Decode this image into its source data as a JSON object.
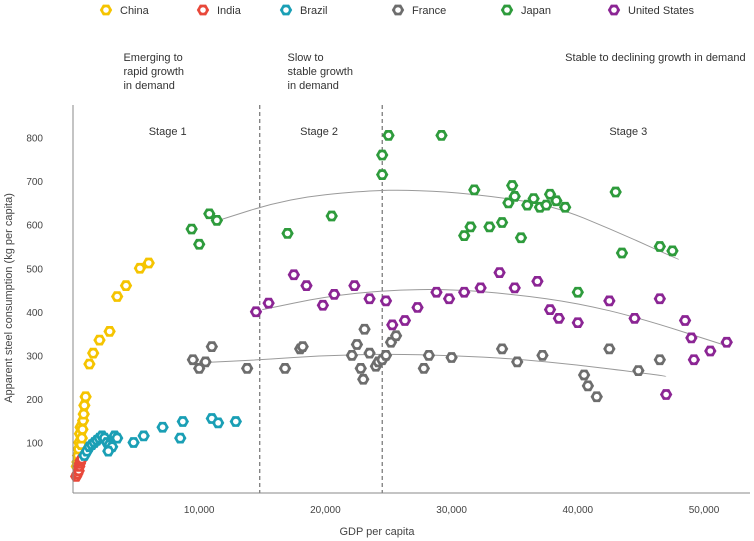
{
  "chart_data": {
    "type": "scatter",
    "title": "",
    "xlabel": "GDP per capita",
    "ylabel": "Apparent steel consumption (kg per capita)",
    "xlim": [
      0,
      55000
    ],
    "ylim": [
      0,
      850
    ],
    "xticks": [
      {
        "value": 10000,
        "label": "10,000"
      },
      {
        "value": 20000,
        "label": "20,000"
      },
      {
        "value": 30000,
        "label": "30,000"
      },
      {
        "value": 40000,
        "label": "40,000"
      },
      {
        "value": 50000,
        "label": "50,000"
      }
    ],
    "yticks": [
      {
        "value": 100,
        "label": "100"
      },
      {
        "value": 200,
        "label": "200"
      },
      {
        "value": 300,
        "label": "300"
      },
      {
        "value": 400,
        "label": "400"
      },
      {
        "value": 500,
        "label": "500"
      },
      {
        "value": 600,
        "label": "600"
      },
      {
        "value": 700,
        "label": "700"
      },
      {
        "value": 800,
        "label": "800"
      }
    ],
    "grid": false,
    "legend_position": "top",
    "stage_dividers": [
      14800,
      24500
    ],
    "stages": [
      {
        "label": "Stage 1",
        "x": 7500,
        "y": 795
      },
      {
        "label": "Stage 2",
        "x": 19500,
        "y": 795
      },
      {
        "label": "Stage 3",
        "x": 44000,
        "y": 795
      }
    ],
    "stage_notes": [
      {
        "lines": [
          "Emerging to",
          "rapid growth",
          "in demand"
        ],
        "x": 4000
      },
      {
        "lines": [
          "Slow to",
          "stable growth",
          "in demand"
        ],
        "x": 17000
      },
      {
        "lines": [
          "Stable to declining growth in demand"
        ],
        "x": 39000
      }
    ],
    "series": [
      {
        "name": "China",
        "color": "#F5C400",
        "points": [
          [
            300,
            45
          ],
          [
            350,
            55
          ],
          [
            400,
            70
          ],
          [
            450,
            85
          ],
          [
            500,
            100
          ],
          [
            550,
            120
          ],
          [
            600,
            135
          ],
          [
            650,
            95
          ],
          [
            700,
            110
          ],
          [
            750,
            130
          ],
          [
            800,
            150
          ],
          [
            850,
            165
          ],
          [
            900,
            185
          ],
          [
            1000,
            205
          ],
          [
            1300,
            280
          ],
          [
            1600,
            305
          ],
          [
            2100,
            335
          ],
          [
            2900,
            355
          ],
          [
            3500,
            435
          ],
          [
            4200,
            460
          ],
          [
            5300,
            500
          ],
          [
            6000,
            512
          ]
        ]
      },
      {
        "name": "India",
        "color": "#E8483A",
        "points": [
          [
            250,
            22
          ],
          [
            350,
            28
          ],
          [
            450,
            35
          ],
          [
            500,
            45
          ],
          [
            550,
            52
          ],
          [
            600,
            58
          ],
          [
            700,
            62
          ]
        ]
      },
      {
        "name": "Brazil",
        "color": "#1A9FB5",
        "points": [
          [
            900,
            70
          ],
          [
            1100,
            80
          ],
          [
            1300,
            90
          ],
          [
            1500,
            95
          ],
          [
            1700,
            100
          ],
          [
            1900,
            105
          ],
          [
            2100,
            110
          ],
          [
            2300,
            115
          ],
          [
            2500,
            110
          ],
          [
            2700,
            100
          ],
          [
            2900,
            95
          ],
          [
            3100,
            90
          ],
          [
            3300,
            115
          ],
          [
            2800,
            80
          ],
          [
            3500,
            110
          ],
          [
            4800,
            100
          ],
          [
            5600,
            115
          ],
          [
            7100,
            135
          ],
          [
            8500,
            110
          ],
          [
            8700,
            148
          ],
          [
            11000,
            155
          ],
          [
            11500,
            145
          ],
          [
            12900,
            148
          ]
        ]
      },
      {
        "name": "France",
        "color": "#6D6D6D",
        "points": [
          [
            9500,
            290
          ],
          [
            10000,
            270
          ],
          [
            10500,
            285
          ],
          [
            11000,
            320
          ],
          [
            13800,
            270
          ],
          [
            16800,
            270
          ],
          [
            18000,
            315
          ],
          [
            18200,
            320
          ],
          [
            22100,
            300
          ],
          [
            22500,
            325
          ],
          [
            22800,
            270
          ],
          [
            23000,
            245
          ],
          [
            23100,
            360
          ],
          [
            23500,
            305
          ],
          [
            24000,
            275
          ],
          [
            24200,
            285
          ],
          [
            24500,
            290
          ],
          [
            24800,
            300
          ],
          [
            25200,
            330
          ],
          [
            25600,
            345
          ],
          [
            27800,
            270
          ],
          [
            28200,
            300
          ],
          [
            30000,
            295
          ],
          [
            34000,
            315
          ],
          [
            35200,
            285
          ],
          [
            37200,
            300
          ],
          [
            40500,
            255
          ],
          [
            40800,
            230
          ],
          [
            41500,
            205
          ],
          [
            42500,
            315
          ],
          [
            44800,
            265
          ],
          [
            46500,
            290
          ]
        ]
      },
      {
        "name": "Japan",
        "color": "#2E9B3C",
        "points": [
          [
            9400,
            590
          ],
          [
            10000,
            555
          ],
          [
            10800,
            625
          ],
          [
            11400,
            610
          ],
          [
            17000,
            580
          ],
          [
            20500,
            620
          ],
          [
            24500,
            760
          ],
          [
            24500,
            715
          ],
          [
            25000,
            805
          ],
          [
            29200,
            805
          ],
          [
            31000,
            575
          ],
          [
            31500,
            595
          ],
          [
            31800,
            680
          ],
          [
            33000,
            595
          ],
          [
            34000,
            605
          ],
          [
            34500,
            650
          ],
          [
            34800,
            690
          ],
          [
            35000,
            665
          ],
          [
            35500,
            570
          ],
          [
            36000,
            645
          ],
          [
            36500,
            660
          ],
          [
            37000,
            640
          ],
          [
            37500,
            645
          ],
          [
            37800,
            670
          ],
          [
            38300,
            655
          ],
          [
            39000,
            640
          ],
          [
            40000,
            445
          ],
          [
            43000,
            675
          ],
          [
            43500,
            535
          ],
          [
            46500,
            550
          ],
          [
            47500,
            540
          ]
        ]
      },
      {
        "name": "United States",
        "color": "#8B2594",
        "points": [
          [
            14500,
            400
          ],
          [
            15500,
            420
          ],
          [
            17500,
            485
          ],
          [
            18500,
            460
          ],
          [
            19800,
            415
          ],
          [
            20700,
            440
          ],
          [
            22300,
            460
          ],
          [
            23500,
            430
          ],
          [
            24800,
            425
          ],
          [
            25300,
            370
          ],
          [
            26300,
            380
          ],
          [
            27300,
            410
          ],
          [
            28800,
            445
          ],
          [
            29800,
            430
          ],
          [
            31000,
            445
          ],
          [
            32300,
            455
          ],
          [
            33800,
            490
          ],
          [
            35000,
            455
          ],
          [
            36800,
            470
          ],
          [
            37800,
            405
          ],
          [
            38500,
            385
          ],
          [
            40000,
            375
          ],
          [
            42500,
            425
          ],
          [
            44500,
            385
          ],
          [
            46500,
            430
          ],
          [
            47000,
            210
          ],
          [
            48500,
            380
          ],
          [
            49000,
            340
          ],
          [
            49200,
            290
          ],
          [
            50500,
            310
          ],
          [
            51800,
            330
          ]
        ]
      }
    ],
    "trendlines": [
      {
        "series": "Japan",
        "points": [
          [
            11000,
            605
          ],
          [
            17000,
            660
          ],
          [
            23000,
            678
          ],
          [
            27000,
            680
          ],
          [
            32000,
            670
          ],
          [
            38000,
            645
          ],
          [
            43000,
            585
          ],
          [
            48000,
            520
          ]
        ]
      },
      {
        "series": "United States",
        "points": [
          [
            15000,
            405
          ],
          [
            20000,
            435
          ],
          [
            25000,
            450
          ],
          [
            30000,
            452
          ],
          [
            35000,
            440
          ],
          [
            40000,
            420
          ],
          [
            45000,
            385
          ],
          [
            52000,
            320
          ]
        ]
      },
      {
        "series": "France",
        "points": [
          [
            10000,
            283
          ],
          [
            15000,
            290
          ],
          [
            20000,
            300
          ],
          [
            25000,
            303
          ],
          [
            30000,
            300
          ],
          [
            35000,
            292
          ],
          [
            40000,
            278
          ],
          [
            45000,
            260
          ],
          [
            47000,
            252
          ]
        ]
      }
    ]
  }
}
